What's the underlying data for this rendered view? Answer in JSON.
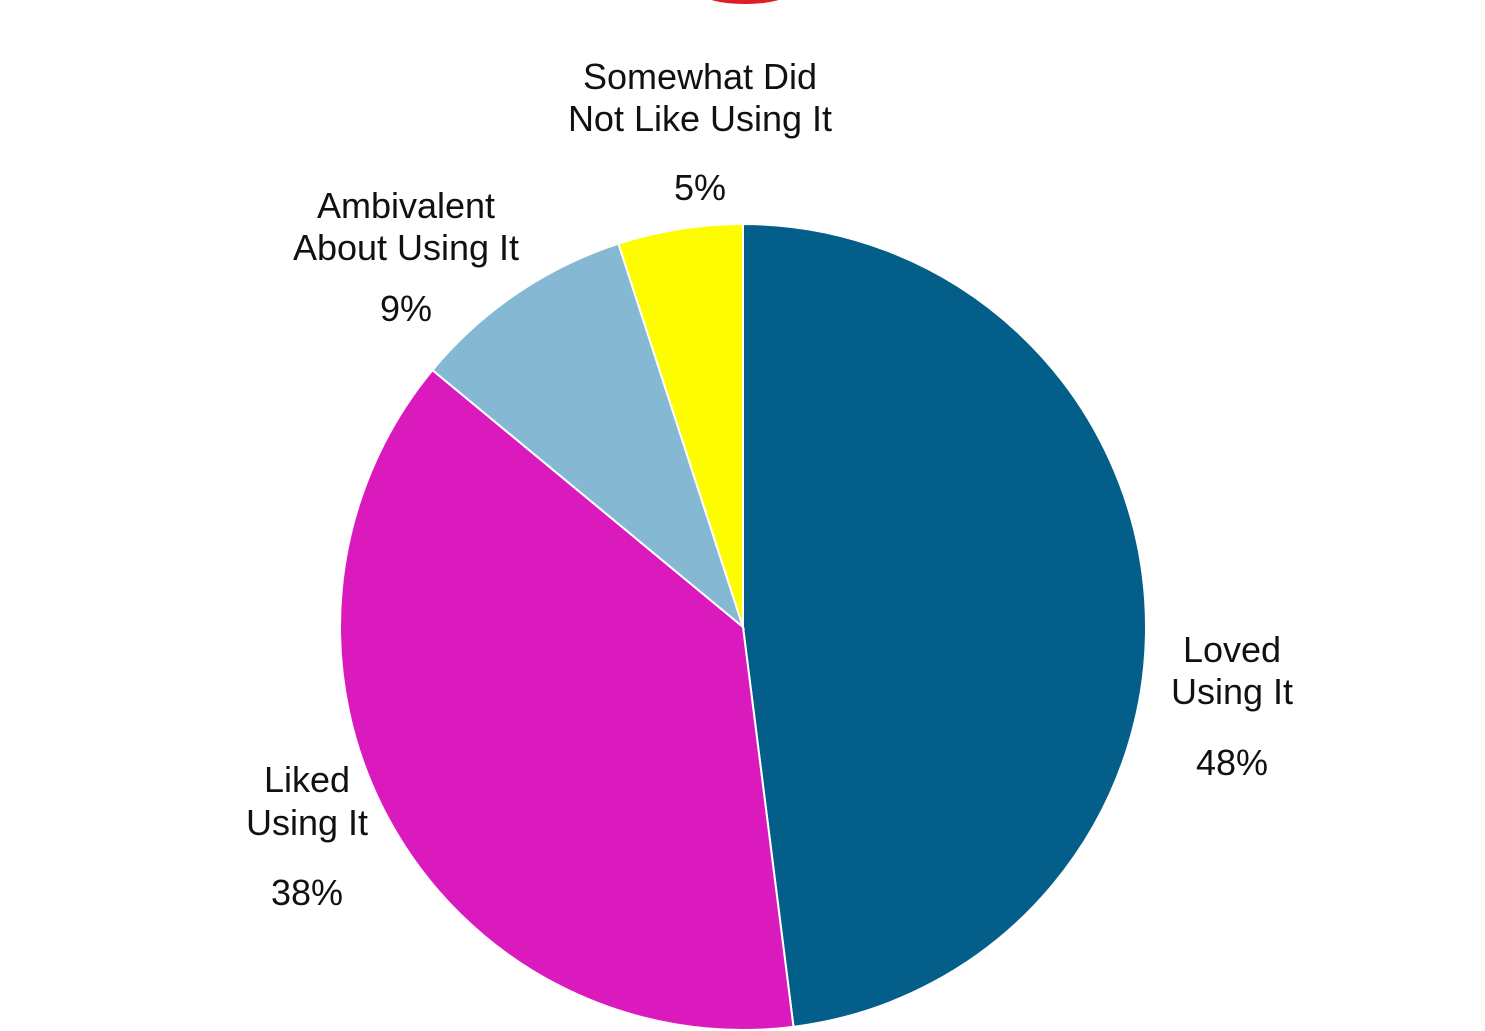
{
  "chart_data": {
    "type": "pie",
    "slices": [
      {
        "label_line1": "Loved",
        "label_line2": "Using It",
        "value": 48,
        "value_label": "48%",
        "color": "#035f8a"
      },
      {
        "label_line1": "Liked",
        "label_line2": "Using It",
        "value": 38,
        "value_label": "38%",
        "color": "#db1abd"
      },
      {
        "label_line1": "Ambivalent",
        "label_line2": "About Using It",
        "value": 9,
        "value_label": "9%",
        "color": "#85b8d2"
      },
      {
        "label_line1": "Somewhat Did",
        "label_line2": "Not Like Using It",
        "value": 5,
        "value_label": "5%",
        "color": "#fdfd00"
      }
    ],
    "start": "12 o'clock",
    "direction": "clockwise"
  }
}
